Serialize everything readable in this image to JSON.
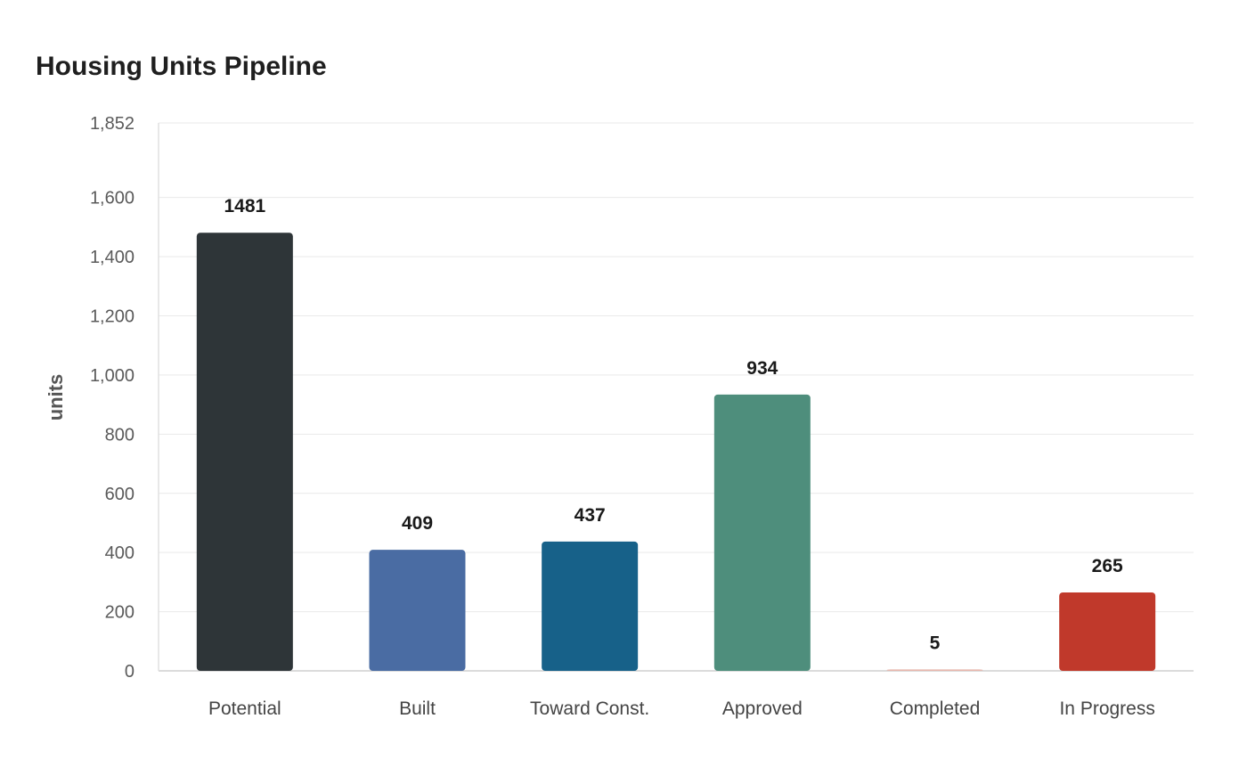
{
  "chart_data": {
    "type": "bar",
    "title": "Housing Units Pipeline",
    "xlabel": "",
    "ylabel": "units",
    "categories": [
      "Potential",
      "Built",
      "Toward Const.",
      "Approved",
      "Completed",
      "In Progress"
    ],
    "values": [
      1481,
      409,
      437,
      934,
      5,
      265
    ],
    "value_labels": [
      "1481",
      "409",
      "437",
      "934",
      "5",
      "265"
    ],
    "colors": [
      "#2e3538",
      "#4a6ca3",
      "#176189",
      "#4e8e7c",
      "#e8b7ad",
      "#c0392b"
    ],
    "ylim": [
      0,
      1852
    ],
    "yticks": [
      0,
      200,
      400,
      600,
      800,
      1000,
      1200,
      1400,
      1600,
      1852
    ],
    "ytick_labels": [
      "0",
      "200",
      "400",
      "600",
      "800",
      "1,000",
      "1,200",
      "1,400",
      "1,600",
      "1,852"
    ],
    "grid": true,
    "legend": "none"
  }
}
